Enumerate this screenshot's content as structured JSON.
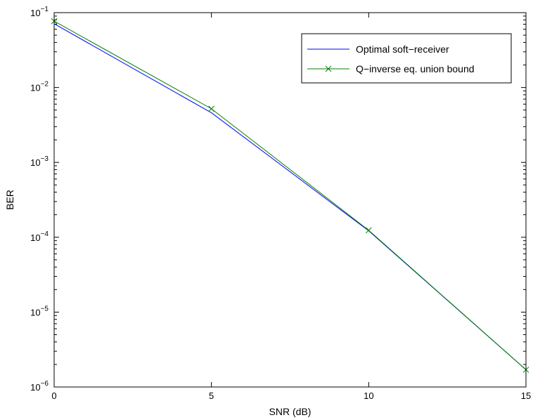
{
  "chart_data": {
    "type": "line",
    "title": "",
    "xlabel": "SNR (dB)",
    "ylabel": "BER",
    "xlim": [
      0,
      15
    ],
    "ylim": [
      1e-06,
      0.1
    ],
    "yscale": "log",
    "grid": false,
    "legend_position": "top-right",
    "x_ticks": [
      0,
      5,
      10,
      15
    ],
    "y_tick_exponents": [
      -6,
      -5,
      -4,
      -3,
      -2,
      -1
    ],
    "y_tick_base": "10",
    "series": [
      {
        "name": "Optimal soft−receiver",
        "color": "#0000ff",
        "marker": "none",
        "x": [
          0,
          5,
          10,
          15
        ],
        "y": [
          0.071,
          0.0046,
          0.000122,
          1.7e-06
        ]
      },
      {
        "name": "Q−inverse eq. union bound",
        "color": "#008000",
        "marker": "x",
        "x": [
          0,
          5,
          10,
          15
        ],
        "y": [
          0.077,
          0.0052,
          0.000124,
          1.7e-06
        ]
      }
    ]
  }
}
